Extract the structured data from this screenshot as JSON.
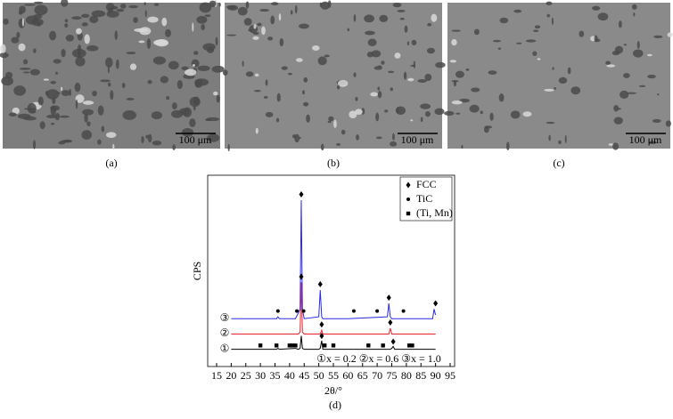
{
  "panels": [
    {
      "label": "(a)",
      "scale": "100 μm"
    },
    {
      "label": "(b)",
      "scale": "100 μm"
    },
    {
      "label": "(c)",
      "scale": "100 μm"
    }
  ],
  "chart_data": {
    "type": "line",
    "label": "(d)",
    "xlabel": "2θ/°",
    "ylabel": "CPS",
    "xlim": [
      15,
      95
    ],
    "xticks": [
      15,
      20,
      25,
      30,
      35,
      40,
      45,
      50,
      55,
      60,
      65,
      70,
      75,
      80,
      85,
      90,
      95
    ],
    "ylim": [
      0,
      100
    ],
    "annotation": "①x = 0.2 ②x = 0.6 ③x = 1.0",
    "x": [
      20,
      30,
      35.5,
      36,
      36.5,
      42,
      43,
      43.6,
      44,
      44.4,
      45,
      50,
      50.5,
      51,
      51.4,
      60,
      73.5,
      74,
      74.5,
      75,
      75.5,
      76,
      89,
      89.5,
      90
    ],
    "series": [
      {
        "name": "①",
        "color": "#000000",
        "values": [
          9,
          9,
          9,
          9.5,
          9,
          9.5,
          9,
          9.5,
          16,
          9.5,
          9,
          9,
          9.5,
          13.5,
          9,
          9,
          9,
          9,
          9,
          9.5,
          10.5,
          9,
          9,
          9,
          9
        ]
      },
      {
        "name": "②",
        "color": "#e8202a",
        "values": [
          17,
          17,
          17,
          17,
          17,
          17,
          17,
          18,
          44,
          18,
          17,
          17,
          17,
          19,
          17,
          17,
          17,
          17,
          20,
          17,
          17,
          17,
          17,
          17,
          17
        ]
      },
      {
        "name": "③",
        "color": "#2a2ae8",
        "values": [
          25,
          25,
          25,
          26,
          25,
          25,
          28,
          30,
          87,
          30,
          25,
          26,
          40,
          26,
          25,
          25,
          26,
          33,
          26,
          25,
          25,
          25,
          25,
          30,
          27
        ]
      }
    ],
    "phases": [
      {
        "name": "FCC",
        "symbol": "diamond",
        "x": [
          44,
          50.5,
          74,
          90,
          44,
          51,
          74.5,
          51,
          75.5
        ],
        "y": [
          90,
          43,
          36,
          33,
          47,
          22,
          23,
          16,
          13
        ]
      },
      {
        "name": "TiC",
        "symbol": "circle",
        "x": [
          36,
          42.5,
          44.8,
          62,
          70,
          79
        ],
        "y": [
          29,
          29,
          29,
          29,
          29,
          29
        ]
      },
      {
        "name": "(Ti, Mn)",
        "symbol": "square",
        "x": [
          30,
          35.5,
          40,
          41,
          42,
          52,
          55,
          67,
          72,
          81,
          82
        ],
        "y": [
          11,
          11,
          11,
          11,
          11,
          11,
          11,
          11,
          11,
          11,
          11
        ]
      }
    ]
  }
}
